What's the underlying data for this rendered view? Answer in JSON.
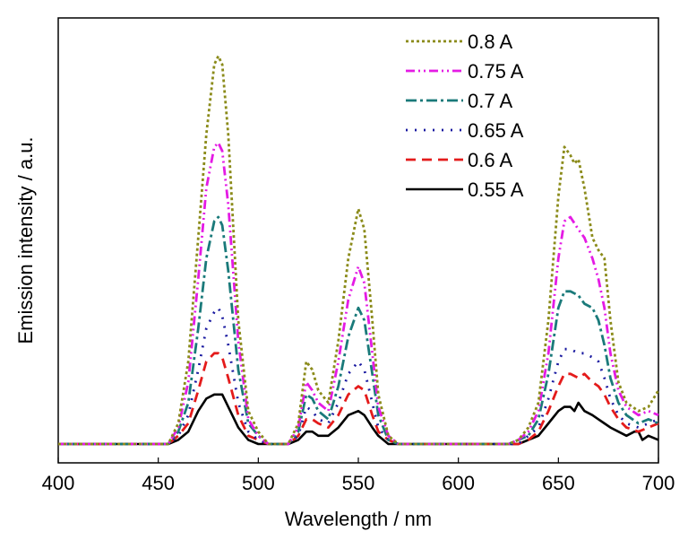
{
  "chart_data": {
    "type": "line",
    "xlabel": "Wavelength / nm",
    "ylabel": "Emission intensity / a.u.",
    "xlim": [
      400,
      700
    ],
    "ylim": [
      0,
      1.1
    ],
    "x_ticks": [
      "400",
      "450",
      "500",
      "550",
      "600",
      "650",
      "700"
    ],
    "y_ticks_shown": false,
    "grid": false,
    "legend_position": "top-right",
    "series": [
      {
        "name": "0.8 A",
        "color": "#8b8b1a",
        "dash": "dotted",
        "points": [
          [
            400,
            0.0
          ],
          [
            455,
            0.0
          ],
          [
            460,
            0.05
          ],
          [
            465,
            0.2
          ],
          [
            470,
            0.5
          ],
          [
            474,
            0.75
          ],
          [
            478,
            0.92
          ],
          [
            480,
            0.94
          ],
          [
            482,
            0.92
          ],
          [
            485,
            0.75
          ],
          [
            490,
            0.3
          ],
          [
            495,
            0.08
          ],
          [
            500,
            0.03
          ],
          [
            505,
            0.0
          ],
          [
            515,
            0.0
          ],
          [
            520,
            0.05
          ],
          [
            524,
            0.2
          ],
          [
            527,
            0.18
          ],
          [
            530,
            0.13
          ],
          [
            535,
            0.1
          ],
          [
            540,
            0.25
          ],
          [
            545,
            0.45
          ],
          [
            550,
            0.57
          ],
          [
            553,
            0.52
          ],
          [
            557,
            0.3
          ],
          [
            560,
            0.12
          ],
          [
            565,
            0.02
          ],
          [
            570,
            0.0
          ],
          [
            625,
            0.0
          ],
          [
            630,
            0.01
          ],
          [
            635,
            0.04
          ],
          [
            640,
            0.1
          ],
          [
            645,
            0.3
          ],
          [
            650,
            0.6
          ],
          [
            653,
            0.72
          ],
          [
            656,
            0.7
          ],
          [
            658,
            0.68
          ],
          [
            660,
            0.69
          ],
          [
            663,
            0.62
          ],
          [
            667,
            0.5
          ],
          [
            670,
            0.47
          ],
          [
            673,
            0.45
          ],
          [
            676,
            0.3
          ],
          [
            680,
            0.15
          ],
          [
            684,
            0.1
          ],
          [
            690,
            0.08
          ],
          [
            695,
            0.09
          ],
          [
            700,
            0.13
          ]
        ]
      },
      {
        "name": "0.75 A",
        "color": "#e41be4",
        "dash": "dash-dot-dot",
        "points": [
          [
            400,
            0.0
          ],
          [
            455,
            0.0
          ],
          [
            460,
            0.04
          ],
          [
            465,
            0.15
          ],
          [
            470,
            0.4
          ],
          [
            474,
            0.62
          ],
          [
            478,
            0.72
          ],
          [
            480,
            0.73
          ],
          [
            482,
            0.71
          ],
          [
            485,
            0.58
          ],
          [
            490,
            0.25
          ],
          [
            495,
            0.06
          ],
          [
            500,
            0.02
          ],
          [
            505,
            0.0
          ],
          [
            515,
            0.0
          ],
          [
            520,
            0.04
          ],
          [
            524,
            0.15
          ],
          [
            527,
            0.13
          ],
          [
            530,
            0.1
          ],
          [
            535,
            0.08
          ],
          [
            540,
            0.2
          ],
          [
            545,
            0.35
          ],
          [
            550,
            0.43
          ],
          [
            553,
            0.39
          ],
          [
            557,
            0.22
          ],
          [
            560,
            0.09
          ],
          [
            565,
            0.02
          ],
          [
            570,
            0.0
          ],
          [
            625,
            0.0
          ],
          [
            630,
            0.01
          ],
          [
            635,
            0.03
          ],
          [
            640,
            0.08
          ],
          [
            645,
            0.22
          ],
          [
            650,
            0.45
          ],
          [
            653,
            0.54
          ],
          [
            656,
            0.55
          ],
          [
            660,
            0.52
          ],
          [
            663,
            0.5
          ],
          [
            667,
            0.45
          ],
          [
            670,
            0.4
          ],
          [
            673,
            0.33
          ],
          [
            676,
            0.22
          ],
          [
            680,
            0.13
          ],
          [
            684,
            0.09
          ],
          [
            690,
            0.07
          ],
          [
            695,
            0.08
          ],
          [
            700,
            0.07
          ]
        ]
      },
      {
        "name": "0.7 A",
        "color": "#1a7a7a",
        "dash": "dash-dot",
        "points": [
          [
            400,
            0.0
          ],
          [
            455,
            0.0
          ],
          [
            460,
            0.03
          ],
          [
            465,
            0.1
          ],
          [
            470,
            0.28
          ],
          [
            474,
            0.45
          ],
          [
            478,
            0.54
          ],
          [
            480,
            0.55
          ],
          [
            482,
            0.53
          ],
          [
            485,
            0.42
          ],
          [
            490,
            0.18
          ],
          [
            495,
            0.05
          ],
          [
            500,
            0.02
          ],
          [
            505,
            0.0
          ],
          [
            515,
            0.0
          ],
          [
            520,
            0.03
          ],
          [
            524,
            0.12
          ],
          [
            527,
            0.11
          ],
          [
            530,
            0.08
          ],
          [
            535,
            0.06
          ],
          [
            540,
            0.14
          ],
          [
            545,
            0.26
          ],
          [
            550,
            0.33
          ],
          [
            553,
            0.3
          ],
          [
            557,
            0.17
          ],
          [
            560,
            0.07
          ],
          [
            565,
            0.01
          ],
          [
            570,
            0.0
          ],
          [
            625,
            0.0
          ],
          [
            630,
            0.01
          ],
          [
            635,
            0.02
          ],
          [
            640,
            0.06
          ],
          [
            645,
            0.17
          ],
          [
            650,
            0.33
          ],
          [
            653,
            0.37
          ],
          [
            656,
            0.37
          ],
          [
            660,
            0.36
          ],
          [
            663,
            0.34
          ],
          [
            667,
            0.33
          ],
          [
            670,
            0.3
          ],
          [
            673,
            0.24
          ],
          [
            676,
            0.16
          ],
          [
            680,
            0.1
          ],
          [
            684,
            0.07
          ],
          [
            690,
            0.05
          ],
          [
            695,
            0.06
          ],
          [
            700,
            0.05
          ]
        ]
      },
      {
        "name": "0.65 A",
        "color": "#1a1aa0",
        "dash": "dotted-sparse",
        "points": [
          [
            400,
            0.0
          ],
          [
            455,
            0.0
          ],
          [
            460,
            0.02
          ],
          [
            465,
            0.07
          ],
          [
            470,
            0.18
          ],
          [
            474,
            0.28
          ],
          [
            478,
            0.32
          ],
          [
            480,
            0.33
          ],
          [
            482,
            0.31
          ],
          [
            485,
            0.24
          ],
          [
            490,
            0.1
          ],
          [
            495,
            0.03
          ],
          [
            500,
            0.01
          ],
          [
            505,
            0.0
          ],
          [
            515,
            0.0
          ],
          [
            520,
            0.02
          ],
          [
            524,
            0.09
          ],
          [
            527,
            0.08
          ],
          [
            530,
            0.06
          ],
          [
            535,
            0.05
          ],
          [
            540,
            0.1
          ],
          [
            545,
            0.17
          ],
          [
            550,
            0.2
          ],
          [
            553,
            0.18
          ],
          [
            557,
            0.1
          ],
          [
            560,
            0.04
          ],
          [
            565,
            0.01
          ],
          [
            570,
            0.0
          ],
          [
            625,
            0.0
          ],
          [
            630,
            0.0
          ],
          [
            635,
            0.02
          ],
          [
            640,
            0.04
          ],
          [
            645,
            0.11
          ],
          [
            650,
            0.2
          ],
          [
            653,
            0.23
          ],
          [
            656,
            0.23
          ],
          [
            660,
            0.22
          ],
          [
            663,
            0.22
          ],
          [
            667,
            0.21
          ],
          [
            670,
            0.2
          ],
          [
            673,
            0.16
          ],
          [
            676,
            0.11
          ],
          [
            680,
            0.07
          ],
          [
            684,
            0.05
          ],
          [
            690,
            0.04
          ],
          [
            695,
            0.05
          ],
          [
            700,
            0.06
          ]
        ]
      },
      {
        "name": "0.6 A",
        "color": "#e41b1b",
        "dash": "dashed",
        "points": [
          [
            400,
            0.0
          ],
          [
            455,
            0.0
          ],
          [
            460,
            0.02
          ],
          [
            465,
            0.05
          ],
          [
            470,
            0.13
          ],
          [
            474,
            0.2
          ],
          [
            478,
            0.22
          ],
          [
            480,
            0.22
          ],
          [
            482,
            0.21
          ],
          [
            485,
            0.16
          ],
          [
            490,
            0.07
          ],
          [
            495,
            0.02
          ],
          [
            500,
            0.01
          ],
          [
            505,
            0.0
          ],
          [
            515,
            0.0
          ],
          [
            520,
            0.02
          ],
          [
            524,
            0.06
          ],
          [
            527,
            0.06
          ],
          [
            530,
            0.05
          ],
          [
            535,
            0.04
          ],
          [
            540,
            0.07
          ],
          [
            545,
            0.12
          ],
          [
            550,
            0.14
          ],
          [
            553,
            0.13
          ],
          [
            557,
            0.07
          ],
          [
            560,
            0.03
          ],
          [
            565,
            0.01
          ],
          [
            570,
            0.0
          ],
          [
            625,
            0.0
          ],
          [
            630,
            0.0
          ],
          [
            635,
            0.01
          ],
          [
            640,
            0.03
          ],
          [
            645,
            0.08
          ],
          [
            650,
            0.14
          ],
          [
            653,
            0.17
          ],
          [
            656,
            0.17
          ],
          [
            660,
            0.16
          ],
          [
            663,
            0.17
          ],
          [
            667,
            0.15
          ],
          [
            670,
            0.14
          ],
          [
            673,
            0.12
          ],
          [
            676,
            0.09
          ],
          [
            680,
            0.06
          ],
          [
            684,
            0.04
          ],
          [
            690,
            0.03
          ],
          [
            695,
            0.04
          ],
          [
            700,
            0.05
          ]
        ]
      },
      {
        "name": "0.55 A",
        "color": "#000000",
        "dash": "solid",
        "points": [
          [
            400,
            0.0
          ],
          [
            455,
            0.0
          ],
          [
            460,
            0.01
          ],
          [
            465,
            0.03
          ],
          [
            470,
            0.08
          ],
          [
            474,
            0.11
          ],
          [
            478,
            0.12
          ],
          [
            480,
            0.12
          ],
          [
            482,
            0.12
          ],
          [
            485,
            0.09
          ],
          [
            490,
            0.04
          ],
          [
            495,
            0.01
          ],
          [
            500,
            0.0
          ],
          [
            505,
            0.0
          ],
          [
            515,
            0.0
          ],
          [
            520,
            0.01
          ],
          [
            524,
            0.03
          ],
          [
            527,
            0.03
          ],
          [
            530,
            0.02
          ],
          [
            535,
            0.02
          ],
          [
            540,
            0.04
          ],
          [
            545,
            0.07
          ],
          [
            550,
            0.08
          ],
          [
            553,
            0.07
          ],
          [
            557,
            0.04
          ],
          [
            560,
            0.02
          ],
          [
            565,
            0.0
          ],
          [
            570,
            0.0
          ],
          [
            625,
            0.0
          ],
          [
            630,
            0.0
          ],
          [
            635,
            0.01
          ],
          [
            640,
            0.02
          ],
          [
            645,
            0.05
          ],
          [
            650,
            0.08
          ],
          [
            653,
            0.09
          ],
          [
            656,
            0.09
          ],
          [
            658,
            0.08
          ],
          [
            660,
            0.1
          ],
          [
            663,
            0.08
          ],
          [
            667,
            0.07
          ],
          [
            670,
            0.06
          ],
          [
            673,
            0.05
          ],
          [
            676,
            0.04
          ],
          [
            680,
            0.03
          ],
          [
            684,
            0.02
          ],
          [
            688,
            0.03
          ],
          [
            690,
            0.03
          ],
          [
            692,
            0.01
          ],
          [
            695,
            0.02
          ],
          [
            700,
            0.01
          ]
        ]
      }
    ]
  }
}
